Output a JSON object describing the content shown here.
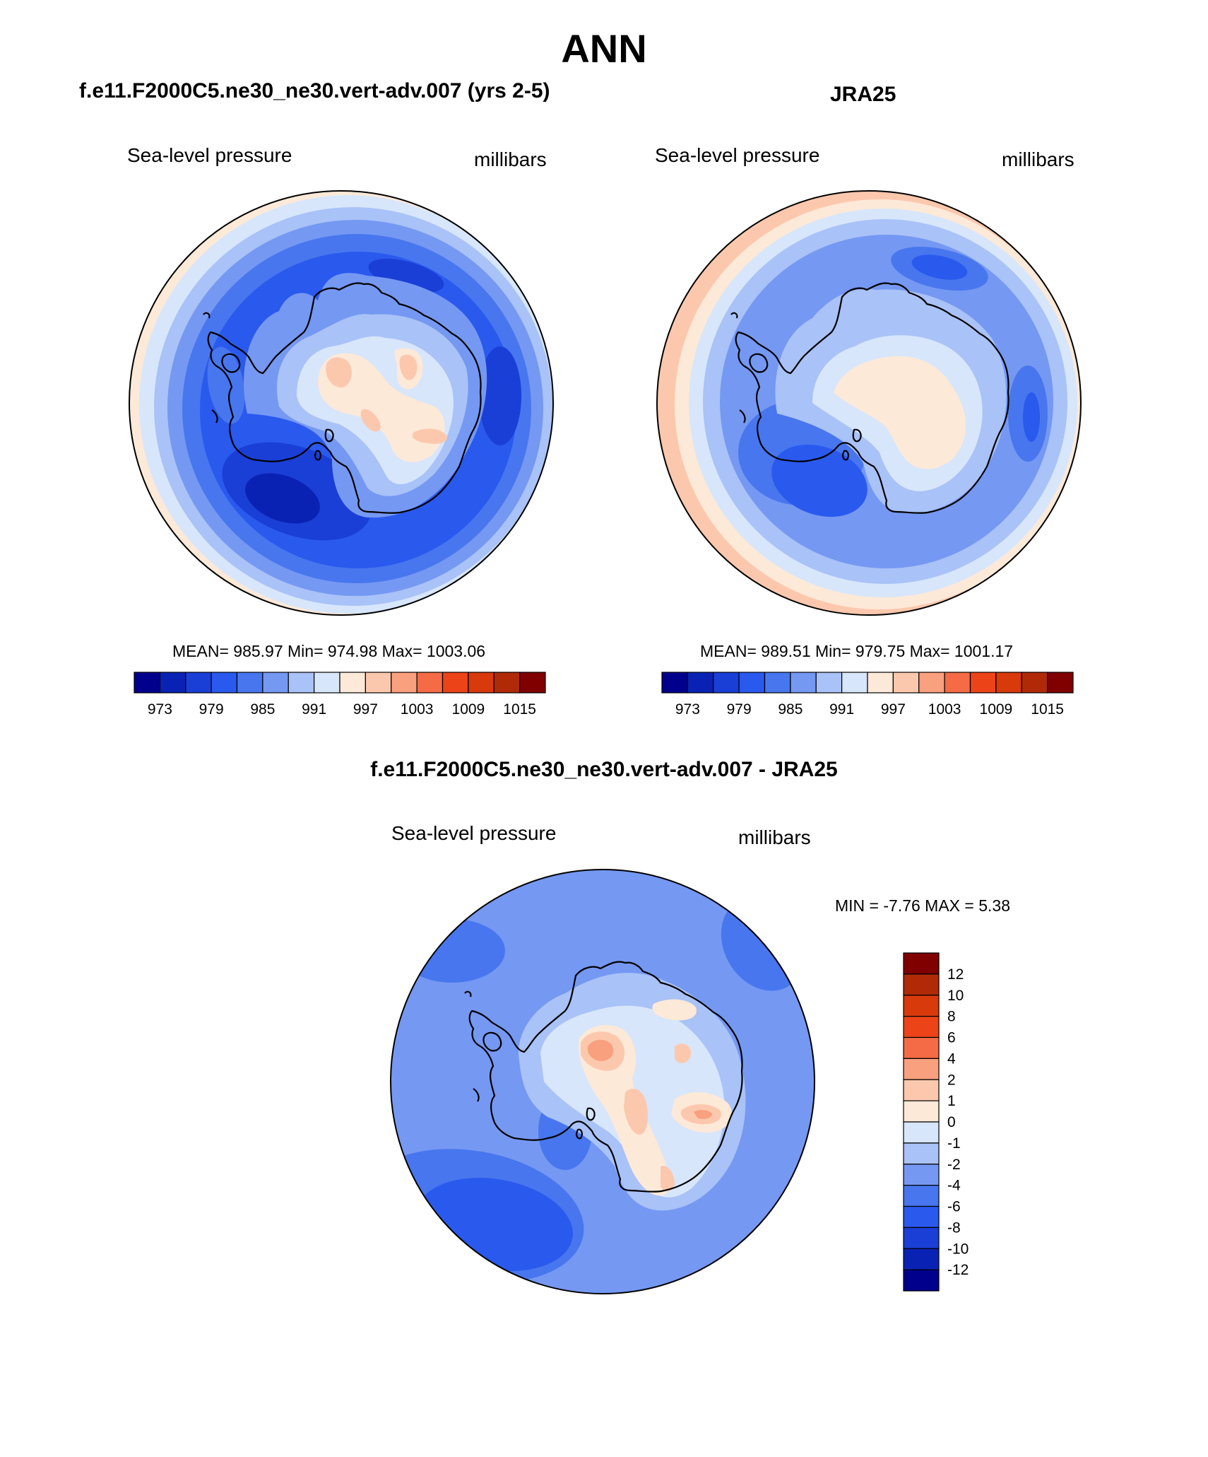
{
  "title": "ANN",
  "panels": [
    {
      "title": "f.e11.F2000C5.ne30_ne30.vert-adv.007 (yrs 2-5)",
      "variable_label": "Sea-level pressure",
      "units_label": "millibars",
      "stats": "MEAN= 985.97  Min= 974.98  Max= 1003.06",
      "mean": 985.97,
      "min": 974.98,
      "max": 1003.06
    },
    {
      "title": "JRA25",
      "variable_label": "Sea-level pressure",
      "units_label": "millibars",
      "stats": "MEAN= 989.51  Min= 979.75  Max= 1001.17",
      "mean": 989.51,
      "min": 979.75,
      "max": 1001.17
    },
    {
      "title": "f.e11.F2000C5.ne30_ne30.vert-adv.007 - JRA25",
      "variable_label": "Sea-level pressure",
      "units_label": "millibars",
      "stats": "MIN =  -7.76 MAX =   5.38",
      "min": -7.76,
      "max": 5.38
    }
  ],
  "colorbar_horizontal": {
    "ticks": [
      "973",
      "979",
      "985",
      "991",
      "997",
      "1003",
      "1009",
      "1015"
    ],
    "colors": [
      "#00008c",
      "#0a22b4",
      "#1a3fd6",
      "#2a59ee",
      "#4876ee",
      "#7598f2",
      "#a9c2f7",
      "#d7e6fb",
      "#fde9d8",
      "#fcc8ad",
      "#f9a07e",
      "#f46b45",
      "#ec4418",
      "#d83a0c",
      "#b02a08",
      "#800000"
    ]
  },
  "colorbar_vertical": {
    "ticks": [
      "12",
      "10",
      "8",
      "6",
      "4",
      "2",
      "1",
      "0",
      "-1",
      "-2",
      "-4",
      "-6",
      "-8",
      "-10",
      "-12"
    ],
    "colors": [
      "#800000",
      "#b02a08",
      "#d83a0c",
      "#ec4418",
      "#f46b45",
      "#f9a07e",
      "#fcc8ad",
      "#fde9d8",
      "#d7e6fb",
      "#a9c2f7",
      "#7598f2",
      "#4876ee",
      "#2a59ee",
      "#1a3fd6",
      "#0a22b4",
      "#00008c"
    ]
  },
  "chart_data": [
    {
      "type": "heatmap",
      "projection": "south-polar stereographic",
      "title": "f.e11.F2000C5.ne30_ne30.vert-adv.007 (yrs 2-5)",
      "field": "Sea-level pressure",
      "units": "millibars",
      "contour_levels": [
        973,
        976,
        979,
        982,
        985,
        988,
        991,
        994,
        997,
        1000,
        1003,
        1006,
        1009,
        1012,
        1015
      ],
      "mean": 985.97,
      "min": 974.98,
      "max": 1003.06
    },
    {
      "type": "heatmap",
      "projection": "south-polar stereographic",
      "title": "JRA25",
      "field": "Sea-level pressure",
      "units": "millibars",
      "contour_levels": [
        973,
        976,
        979,
        982,
        985,
        988,
        991,
        994,
        997,
        1000,
        1003,
        1006,
        1009,
        1012,
        1015
      ],
      "mean": 989.51,
      "min": 979.75,
      "max": 1001.17
    },
    {
      "type": "heatmap",
      "projection": "south-polar stereographic",
      "title": "f.e11.F2000C5.ne30_ne30.vert-adv.007 - JRA25",
      "field": "Sea-level pressure",
      "units": "millibars",
      "contour_levels": [
        -12,
        -10,
        -8,
        -6,
        -4,
        -2,
        -1,
        0,
        1,
        2,
        4,
        6,
        8,
        10,
        12
      ],
      "min": -7.76,
      "max": 5.38
    }
  ]
}
